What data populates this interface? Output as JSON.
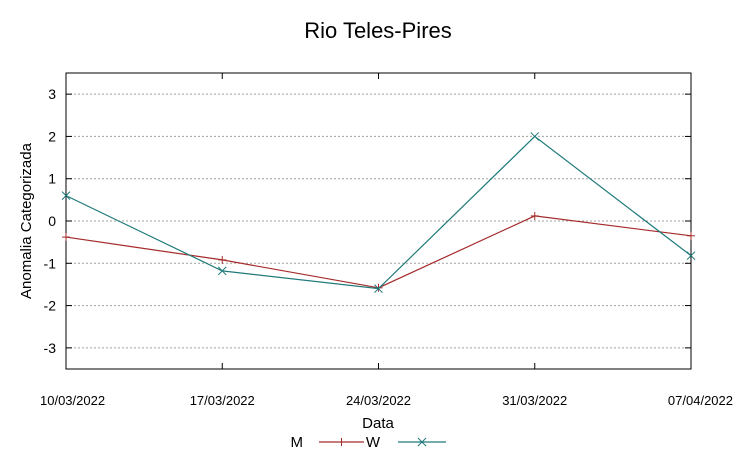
{
  "chart_data": {
    "type": "line",
    "title": "Rio Teles-Pires",
    "xlabel": "Data",
    "ylabel": "Anomalia Categorizada",
    "categories": [
      "10/03/2022",
      "17/03/2022",
      "24/03/2022",
      "31/03/2022",
      "07/04/2022"
    ],
    "ylim": [
      -3.5,
      3.5
    ],
    "yticks": [
      -3,
      -2,
      -1,
      0,
      1,
      2,
      3
    ],
    "grid": true,
    "legend_position": "bottom-center",
    "series": [
      {
        "name": "M",
        "color": "#a52a2a",
        "marker": "plus",
        "values": [
          -0.38,
          -0.92,
          -1.58,
          0.12,
          -0.35
        ]
      },
      {
        "name": "W",
        "color": "#1f7a7a",
        "marker": "cross",
        "values": [
          0.6,
          -1.18,
          -1.6,
          2.0,
          -0.82
        ]
      }
    ]
  }
}
